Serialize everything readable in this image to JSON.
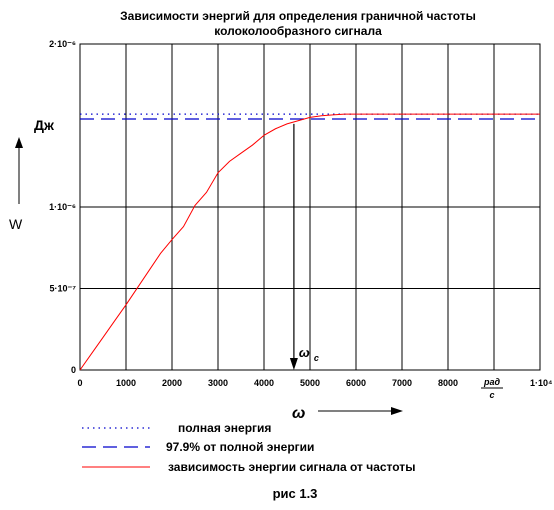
{
  "chart_data": {
    "type": "line",
    "title_line1": "Зависимости энергий для определения граничной частоты",
    "title_line2": "колоколообразного сигнала",
    "xlim": [
      0,
      10000
    ],
    "ylim": [
      0,
      2e-06
    ],
    "grid": true,
    "x_ticks": [
      {
        "value": 0,
        "label": "0"
      },
      {
        "value": 1000,
        "label": "1000"
      },
      {
        "value": 2000,
        "label": "2000"
      },
      {
        "value": 3000,
        "label": "3000"
      },
      {
        "value": 4000,
        "label": "4000"
      },
      {
        "value": 5000,
        "label": "5000"
      },
      {
        "value": 6000,
        "label": "6000"
      },
      {
        "value": 7000,
        "label": "7000"
      },
      {
        "value": 8000,
        "label": "8000"
      },
      {
        "value": 10000,
        "label": "1·10⁴"
      }
    ],
    "y_ticks": [
      {
        "value": 0,
        "label": "0"
      },
      {
        "value": 5e-07,
        "label": "5·10⁻⁷"
      },
      {
        "value": 1e-06,
        "label": "1·10⁻⁶"
      },
      {
        "value": 2e-06,
        "label": "2·10⁻⁶"
      }
    ],
    "y_unit_label": "Дж",
    "y_axis_label": "W",
    "x_unit_label_num": "рад",
    "x_unit_label_den": "с",
    "x_axis_label": "ω",
    "marker_label": "ω",
    "marker_subscript": "c",
    "marker_x": 4650,
    "series": [
      {
        "name": "полная энергия",
        "style": "dotted",
        "color": "#0000cc",
        "constant": 1.57e-06
      },
      {
        "name": "97.9% от полной энергии",
        "style": "dashed",
        "color": "#0000cc",
        "constant": 1.54e-06
      },
      {
        "name": "зависимость энергии сигнала от частоты",
        "style": "solid",
        "color": "#ff0000",
        "x": [
          0,
          250,
          500,
          750,
          1000,
          1250,
          1500,
          1750,
          2000,
          2250,
          2500,
          2750,
          3000,
          3250,
          3500,
          3750,
          4000,
          4250,
          4500,
          4750,
          5000,
          5250,
          5500,
          5750,
          6000
        ],
        "y": [
          0,
          1e-07,
          2e-07,
          3e-07,
          4e-07,
          5.05e-07,
          6.1e-07,
          7.15e-07,
          8e-07,
          8.8e-07,
          1.01e-06,
          1.09e-06,
          1.21e-06,
          1.28e-06,
          1.33e-06,
          1.38e-06,
          1.44e-06,
          1.48e-06,
          1.51e-06,
          1.53e-06,
          1.55e-06,
          1.56e-06,
          1.565e-06,
          1.57e-06,
          1.57e-06
        ]
      }
    ]
  },
  "caption": "рис 1.3"
}
